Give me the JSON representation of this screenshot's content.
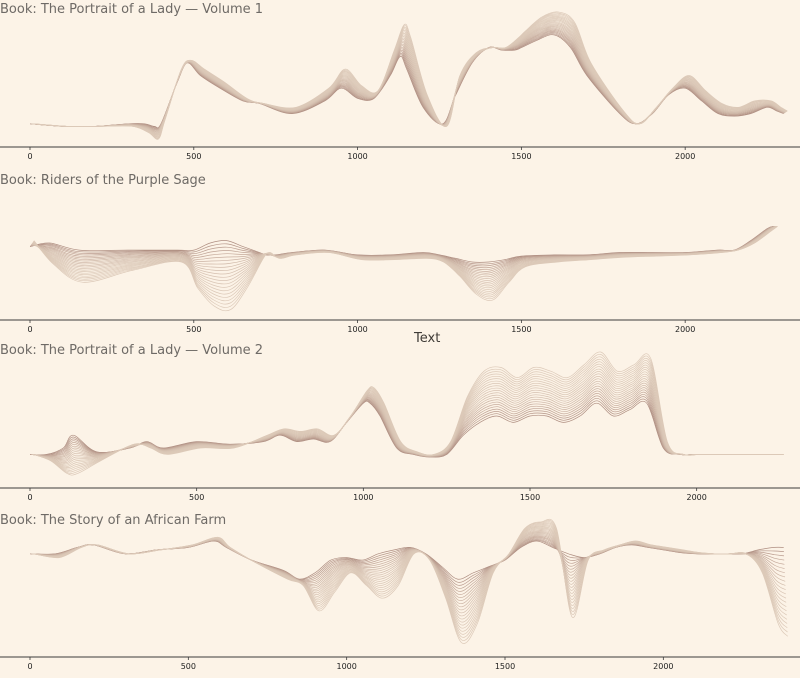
{
  "figure": {
    "xlabel": "Text"
  },
  "colors": {
    "background": "#fcf3e7",
    "line_light": "#dcc9b8",
    "line_dark": "#a9867a",
    "axis": "#3b3b3b"
  },
  "chart_data": [
    {
      "type": "line",
      "title": "Book: The Portrait of a Lady — Volume 1",
      "xlim": [
        0,
        2320
      ],
      "xticks": [
        0,
        500,
        1000,
        1500,
        2000
      ],
      "layers": 22,
      "series_base": {
        "x": [
          0,
          100,
          200,
          300,
          350,
          380,
          400,
          450,
          480,
          520,
          580,
          650,
          700,
          800,
          900,
          950,
          1000,
          1050,
          1100,
          1130,
          1150,
          1200,
          1260,
          1300,
          1350,
          1400,
          1440,
          1480,
          1500,
          1550,
          1600,
          1650,
          1700,
          1800,
          1850,
          1900,
          1950,
          2000,
          2050,
          2100,
          2150,
          2200,
          2250,
          2280,
          2300
        ],
        "y": [
          0.12,
          0.1,
          0.1,
          0.12,
          0.12,
          0.1,
          0.12,
          0.45,
          0.6,
          0.5,
          0.4,
          0.3,
          0.28,
          0.2,
          0.3,
          0.4,
          0.32,
          0.32,
          0.5,
          0.65,
          0.55,
          0.25,
          0.12,
          0.35,
          0.6,
          0.72,
          0.7,
          0.7,
          0.72,
          0.78,
          0.82,
          0.72,
          0.5,
          0.2,
          0.12,
          0.2,
          0.35,
          0.4,
          0.3,
          0.2,
          0.18,
          0.2,
          0.25,
          0.22,
          0.2
        ]
      },
      "series_peak": {
        "x": [
          0,
          100,
          200,
          300,
          350,
          380,
          400,
          450,
          480,
          520,
          580,
          650,
          700,
          800,
          900,
          950,
          1000,
          1050,
          1100,
          1130,
          1150,
          1200,
          1260,
          1300,
          1350,
          1400,
          1440,
          1480,
          1500,
          1550,
          1600,
          1650,
          1700,
          1800,
          1850,
          1900,
          1950,
          2000,
          2050,
          2100,
          2150,
          2200,
          2250,
          2280,
          2300
        ],
        "y": [
          0.12,
          0.1,
          0.1,
          0.1,
          0.05,
          0.0,
          0.15,
          0.55,
          0.62,
          0.55,
          0.45,
          0.32,
          0.28,
          0.25,
          0.4,
          0.55,
          0.42,
          0.38,
          0.7,
          0.9,
          0.8,
          0.35,
          0.1,
          0.5,
          0.68,
          0.72,
          0.72,
          0.8,
          0.85,
          0.96,
          1.0,
          0.92,
          0.6,
          0.22,
          0.12,
          0.25,
          0.4,
          0.5,
          0.38,
          0.28,
          0.25,
          0.3,
          0.3,
          0.25,
          0.22
        ]
      }
    },
    {
      "type": "line",
      "title": "Book: Riders of the Purple Sage",
      "xlim": [
        0,
        2320
      ],
      "xticks": [
        0,
        500,
        1000,
        1500,
        2000
      ],
      "layers": 22,
      "series_base": {
        "x": [
          0,
          60,
          150,
          300,
          450,
          500,
          550,
          600,
          650,
          700,
          720,
          750,
          800,
          900,
          1000,
          1100,
          1200,
          1250,
          1300,
          1350,
          1400,
          1450,
          1500,
          1600,
          1700,
          1800,
          1900,
          2000,
          2100,
          2150,
          2200,
          2250,
          2270
        ],
        "y": [
          0.55,
          0.58,
          0.52,
          0.52,
          0.52,
          0.52,
          0.58,
          0.6,
          0.55,
          0.5,
          0.48,
          0.48,
          0.5,
          0.52,
          0.48,
          0.48,
          0.5,
          0.48,
          0.45,
          0.42,
          0.42,
          0.44,
          0.47,
          0.48,
          0.48,
          0.5,
          0.5,
          0.5,
          0.52,
          0.52,
          0.6,
          0.7,
          0.72
        ]
      },
      "series_peak": {
        "x": [
          0,
          60,
          150,
          300,
          450,
          500,
          550,
          600,
          650,
          700,
          720,
          750,
          800,
          900,
          1000,
          1100,
          1200,
          1250,
          1300,
          1350,
          1400,
          1450,
          1500,
          1600,
          1700,
          1800,
          1900,
          2000,
          2100,
          2150,
          2200,
          2250,
          2270
        ],
        "y": [
          0.6,
          0.4,
          0.25,
          0.35,
          0.42,
          0.2,
          0.05,
          0.02,
          0.2,
          0.45,
          0.5,
          0.45,
          0.48,
          0.5,
          0.44,
          0.44,
          0.45,
          0.42,
          0.3,
          0.15,
          0.1,
          0.25,
          0.38,
          0.42,
          0.44,
          0.46,
          0.47,
          0.48,
          0.5,
          0.52,
          0.58,
          0.68,
          0.72
        ]
      }
    },
    {
      "type": "line",
      "title": "Book: The Portrait of a Lady — Volume 2",
      "xlim": [
        0,
        2280
      ],
      "xticks": [
        0,
        500,
        1000,
        1500,
        2000
      ],
      "layers": 22,
      "series_base": {
        "x": [
          0,
          50,
          100,
          130,
          200,
          300,
          350,
          400,
          500,
          600,
          700,
          750,
          800,
          850,
          900,
          950,
          1000,
          1020,
          1050,
          1100,
          1150,
          1200,
          1250,
          1300,
          1350,
          1400,
          1450,
          1500,
          1550,
          1600,
          1650,
          1700,
          1750,
          1800,
          1850,
          1900,
          1950,
          2000,
          2100,
          2200,
          2250
        ],
        "y": [
          0.2,
          0.2,
          0.25,
          0.35,
          0.22,
          0.25,
          0.3,
          0.25,
          0.3,
          0.28,
          0.3,
          0.35,
          0.3,
          0.32,
          0.3,
          0.45,
          0.6,
          0.6,
          0.5,
          0.25,
          0.2,
          0.18,
          0.2,
          0.35,
          0.45,
          0.5,
          0.45,
          0.5,
          0.5,
          0.45,
          0.5,
          0.6,
          0.5,
          0.55,
          0.6,
          0.25,
          0.2,
          0.2,
          0.2,
          0.2,
          0.2
        ]
      },
      "series_peak": {
        "x": [
          0,
          50,
          100,
          130,
          200,
          300,
          350,
          400,
          500,
          600,
          700,
          750,
          800,
          850,
          900,
          950,
          1000,
          1020,
          1050,
          1100,
          1150,
          1200,
          1250,
          1300,
          1350,
          1400,
          1450,
          1500,
          1550,
          1600,
          1650,
          1700,
          1750,
          1800,
          1850,
          1900,
          1950,
          2000,
          2100,
          2200,
          2250
        ],
        "y": [
          0.2,
          0.15,
          0.05,
          0.05,
          0.15,
          0.28,
          0.25,
          0.2,
          0.25,
          0.25,
          0.35,
          0.4,
          0.38,
          0.4,
          0.35,
          0.5,
          0.7,
          0.72,
          0.6,
          0.3,
          0.22,
          0.2,
          0.3,
          0.65,
          0.85,
          0.88,
          0.8,
          0.88,
          0.85,
          0.8,
          0.9,
          1.0,
          0.85,
          0.9,
          0.95,
          0.3,
          0.2,
          0.2,
          0.2,
          0.2,
          0.2
        ]
      }
    },
    {
      "type": "line",
      "title": "Book: The Story of an African Farm",
      "xlim": [
        0,
        2400
      ],
      "xticks": [
        0,
        500,
        1000,
        1500,
        2000
      ],
      "layers": 22,
      "series_base": {
        "x": [
          0,
          80,
          150,
          200,
          300,
          400,
          500,
          580,
          620,
          700,
          800,
          850,
          900,
          950,
          1000,
          1050,
          1100,
          1150,
          1200,
          1250,
          1300,
          1350,
          1400,
          1450,
          1500,
          1550,
          1600,
          1650,
          1700,
          1750,
          1800,
          1850,
          1900,
          1950,
          2000,
          2050,
          2100,
          2150,
          2200,
          2250,
          2300,
          2350,
          2380
        ],
        "y": [
          0.75,
          0.75,
          0.8,
          0.82,
          0.75,
          0.78,
          0.8,
          0.85,
          0.8,
          0.7,
          0.62,
          0.55,
          0.6,
          0.7,
          0.72,
          0.7,
          0.75,
          0.78,
          0.8,
          0.75,
          0.65,
          0.55,
          0.6,
          0.65,
          0.7,
          0.8,
          0.85,
          0.8,
          0.75,
          0.72,
          0.75,
          0.8,
          0.82,
          0.8,
          0.78,
          0.76,
          0.75,
          0.75,
          0.75,
          0.75,
          0.78,
          0.8,
          0.8
        ]
      },
      "series_peak": {
        "x": [
          0,
          80,
          150,
          200,
          300,
          400,
          500,
          580,
          620,
          700,
          800,
          850,
          900,
          950,
          1000,
          1050,
          1100,
          1150,
          1200,
          1250,
          1300,
          1350,
          1400,
          1450,
          1500,
          1550,
          1600,
          1650,
          1700,
          1750,
          1800,
          1850,
          1900,
          1950,
          2000,
          2050,
          2100,
          2150,
          2200,
          2250,
          2300,
          2350,
          2380
        ],
        "y": [
          0.75,
          0.72,
          0.8,
          0.82,
          0.75,
          0.78,
          0.82,
          0.88,
          0.8,
          0.68,
          0.55,
          0.5,
          0.3,
          0.45,
          0.6,
          0.5,
          0.4,
          0.5,
          0.75,
          0.7,
          0.4,
          0.05,
          0.2,
          0.6,
          0.75,
          0.95,
          1.0,
          0.95,
          0.25,
          0.7,
          0.78,
          0.82,
          0.85,
          0.82,
          0.8,
          0.78,
          0.76,
          0.75,
          0.75,
          0.75,
          0.6,
          0.2,
          0.1
        ]
      }
    }
  ]
}
